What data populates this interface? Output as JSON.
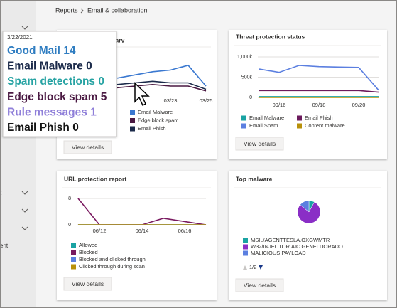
{
  "breadcrumb": [
    "Reports",
    "Email & collaboration"
  ],
  "sidebar": [
    "t",
    "ent"
  ],
  "buttons": [
    "View details",
    "View details",
    "View details",
    "View details"
  ],
  "tooltip": {
    "date": "3/22/2021",
    "items": [
      {
        "name": "Good Mail",
        "value": 14,
        "color": "#2f7dc1"
      },
      {
        "name": "Email Malware",
        "value": 0,
        "color": "#1b2a4a"
      },
      {
        "name": "Spam detections",
        "value": 0,
        "color": "#27a3a3"
      },
      {
        "name": "Edge block spam",
        "value": 5,
        "color": "#4a1942"
      },
      {
        "name": "Rule messages",
        "value": 1,
        "color": "#8f7fd9"
      },
      {
        "name": "Email Phish",
        "value": 0,
        "color": "#141414"
      }
    ]
  },
  "pager": "1/2",
  "chart_data": [
    {
      "type": "line",
      "title": "mary",
      "categories": [
        null,
        null,
        null,
        "03/23",
        null,
        "03/25"
      ],
      "ylim": [
        0,
        20
      ],
      "series": [
        {
          "name": "Email Malware",
          "color": "#3a78d0",
          "values": [
            9,
            11,
            13,
            14,
            17,
            4
          ]
        },
        {
          "name": "Edge block spam",
          "color": "#4a1942",
          "values": [
            3,
            4,
            5,
            4,
            4,
            1
          ]
        },
        {
          "name": "Email Phish",
          "color": "#1b2a4a",
          "values": [
            5,
            6,
            7,
            6,
            6,
            2
          ]
        }
      ]
    },
    {
      "type": "line",
      "title": "Threat protection status",
      "categories": [
        null,
        "09/16",
        null,
        "09/18",
        null,
        "09/20",
        null
      ],
      "ylim": [
        0,
        1000000
      ],
      "yticks": [
        {
          "value": 0,
          "label": "0"
        },
        {
          "value": 500000,
          "label": "500k"
        },
        {
          "value": 1000000,
          "label": "1,000k"
        }
      ],
      "grid": true,
      "series": [
        {
          "name": "Email Malware",
          "color": "#1aa3a3",
          "values": [
            20000,
            20000,
            20000,
            20000,
            20000,
            20000,
            20000
          ]
        },
        {
          "name": "Email Phish",
          "color": "#6b1a5c",
          "values": [
            170000,
            170000,
            170000,
            170000,
            170000,
            170000,
            130000
          ]
        },
        {
          "name": "Email Spam",
          "color": "#5b7fe0",
          "values": [
            700000,
            620000,
            790000,
            760000,
            750000,
            740000,
            180000
          ]
        },
        {
          "name": "Content malware",
          "color": "#b8900a",
          "values": [
            0,
            0,
            0,
            0,
            0,
            0,
            0
          ]
        }
      ]
    },
    {
      "type": "line",
      "title": "URL protection report",
      "categories": [
        null,
        "06/12",
        null,
        "06/14",
        null,
        "06/16",
        null
      ],
      "ylim": [
        0,
        8
      ],
      "yticks": [
        0,
        8
      ],
      "grid": true,
      "series": [
        {
          "name": "Allowed",
          "color": "#1aa3a3",
          "values": [
            0,
            0,
            0,
            0,
            0,
            0,
            0
          ]
        },
        {
          "name": "Blocked",
          "color": "#7a1a60",
          "values": [
            8,
            0,
            0,
            0,
            2,
            1,
            0
          ]
        },
        {
          "name": "Blocked and clicked through",
          "color": "#5b7fe0",
          "values": [
            0,
            0,
            0,
            0,
            0,
            0,
            0
          ]
        },
        {
          "name": "Clicked through during scan",
          "color": "#b8900a",
          "values": [
            0,
            0,
            0,
            0,
            0,
            0,
            0
          ]
        }
      ]
    },
    {
      "type": "pie",
      "title": "Top malware",
      "categories": [
        "MSIL/AGENTTESLA.OXGWMTR",
        "W32/INJECTOR.AIC.GENELDORADO",
        "MALICIOUS PAYLOAD"
      ],
      "values": [
        8,
        78,
        14
      ],
      "colors": [
        "#1aa3a3",
        "#8a2ec6",
        "#5b7fe0"
      ]
    }
  ]
}
